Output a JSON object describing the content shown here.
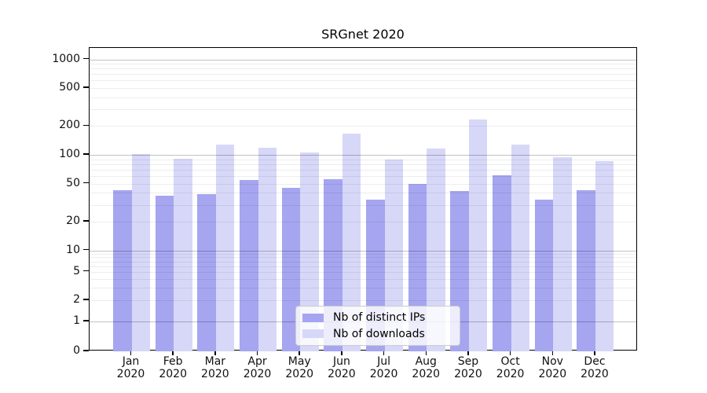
{
  "title": "SRGnet 2020",
  "legend": {
    "items": [
      {
        "label": "Nb of distinct IPs",
        "color": "#a5a5f0"
      },
      {
        "label": "Nb of downloads",
        "color": "#d7d7f8"
      }
    ],
    "position": "lower center"
  },
  "chart_data": {
    "type": "bar",
    "title": "SRGnet 2020",
    "categories": [
      "Jan",
      "Feb",
      "Mar",
      "Apr",
      "May",
      "Jun",
      "Jul",
      "Aug",
      "Sep",
      "Oct",
      "Nov",
      "Dec"
    ],
    "category_year": "2020",
    "series": [
      {
        "name": "Nb of distinct IPs",
        "color": "#a5a5f0",
        "values": [
          43,
          37,
          39,
          55,
          45,
          56,
          34,
          50,
          42,
          61,
          34,
          43
        ]
      },
      {
        "name": "Nb of downloads",
        "color": "#d7d7f8",
        "values": [
          101,
          91,
          129,
          119,
          106,
          167,
          89,
          116,
          233,
          129,
          95,
          86
        ]
      }
    ],
    "yscale": "symlog",
    "ytick_values": [
      1000,
      500,
      200,
      100,
      50,
      20,
      10,
      5,
      2,
      1,
      0
    ],
    "ylim": [
      0,
      1300
    ],
    "grid": true,
    "major_grid_values": [
      1,
      10,
      100,
      1000
    ],
    "legend_position": "lower center"
  },
  "colors": {
    "spine": "#000000",
    "major_grid": "rgba(0,0,0,0.24)",
    "minor_grid": "rgba(0,0,0,0.07)"
  }
}
